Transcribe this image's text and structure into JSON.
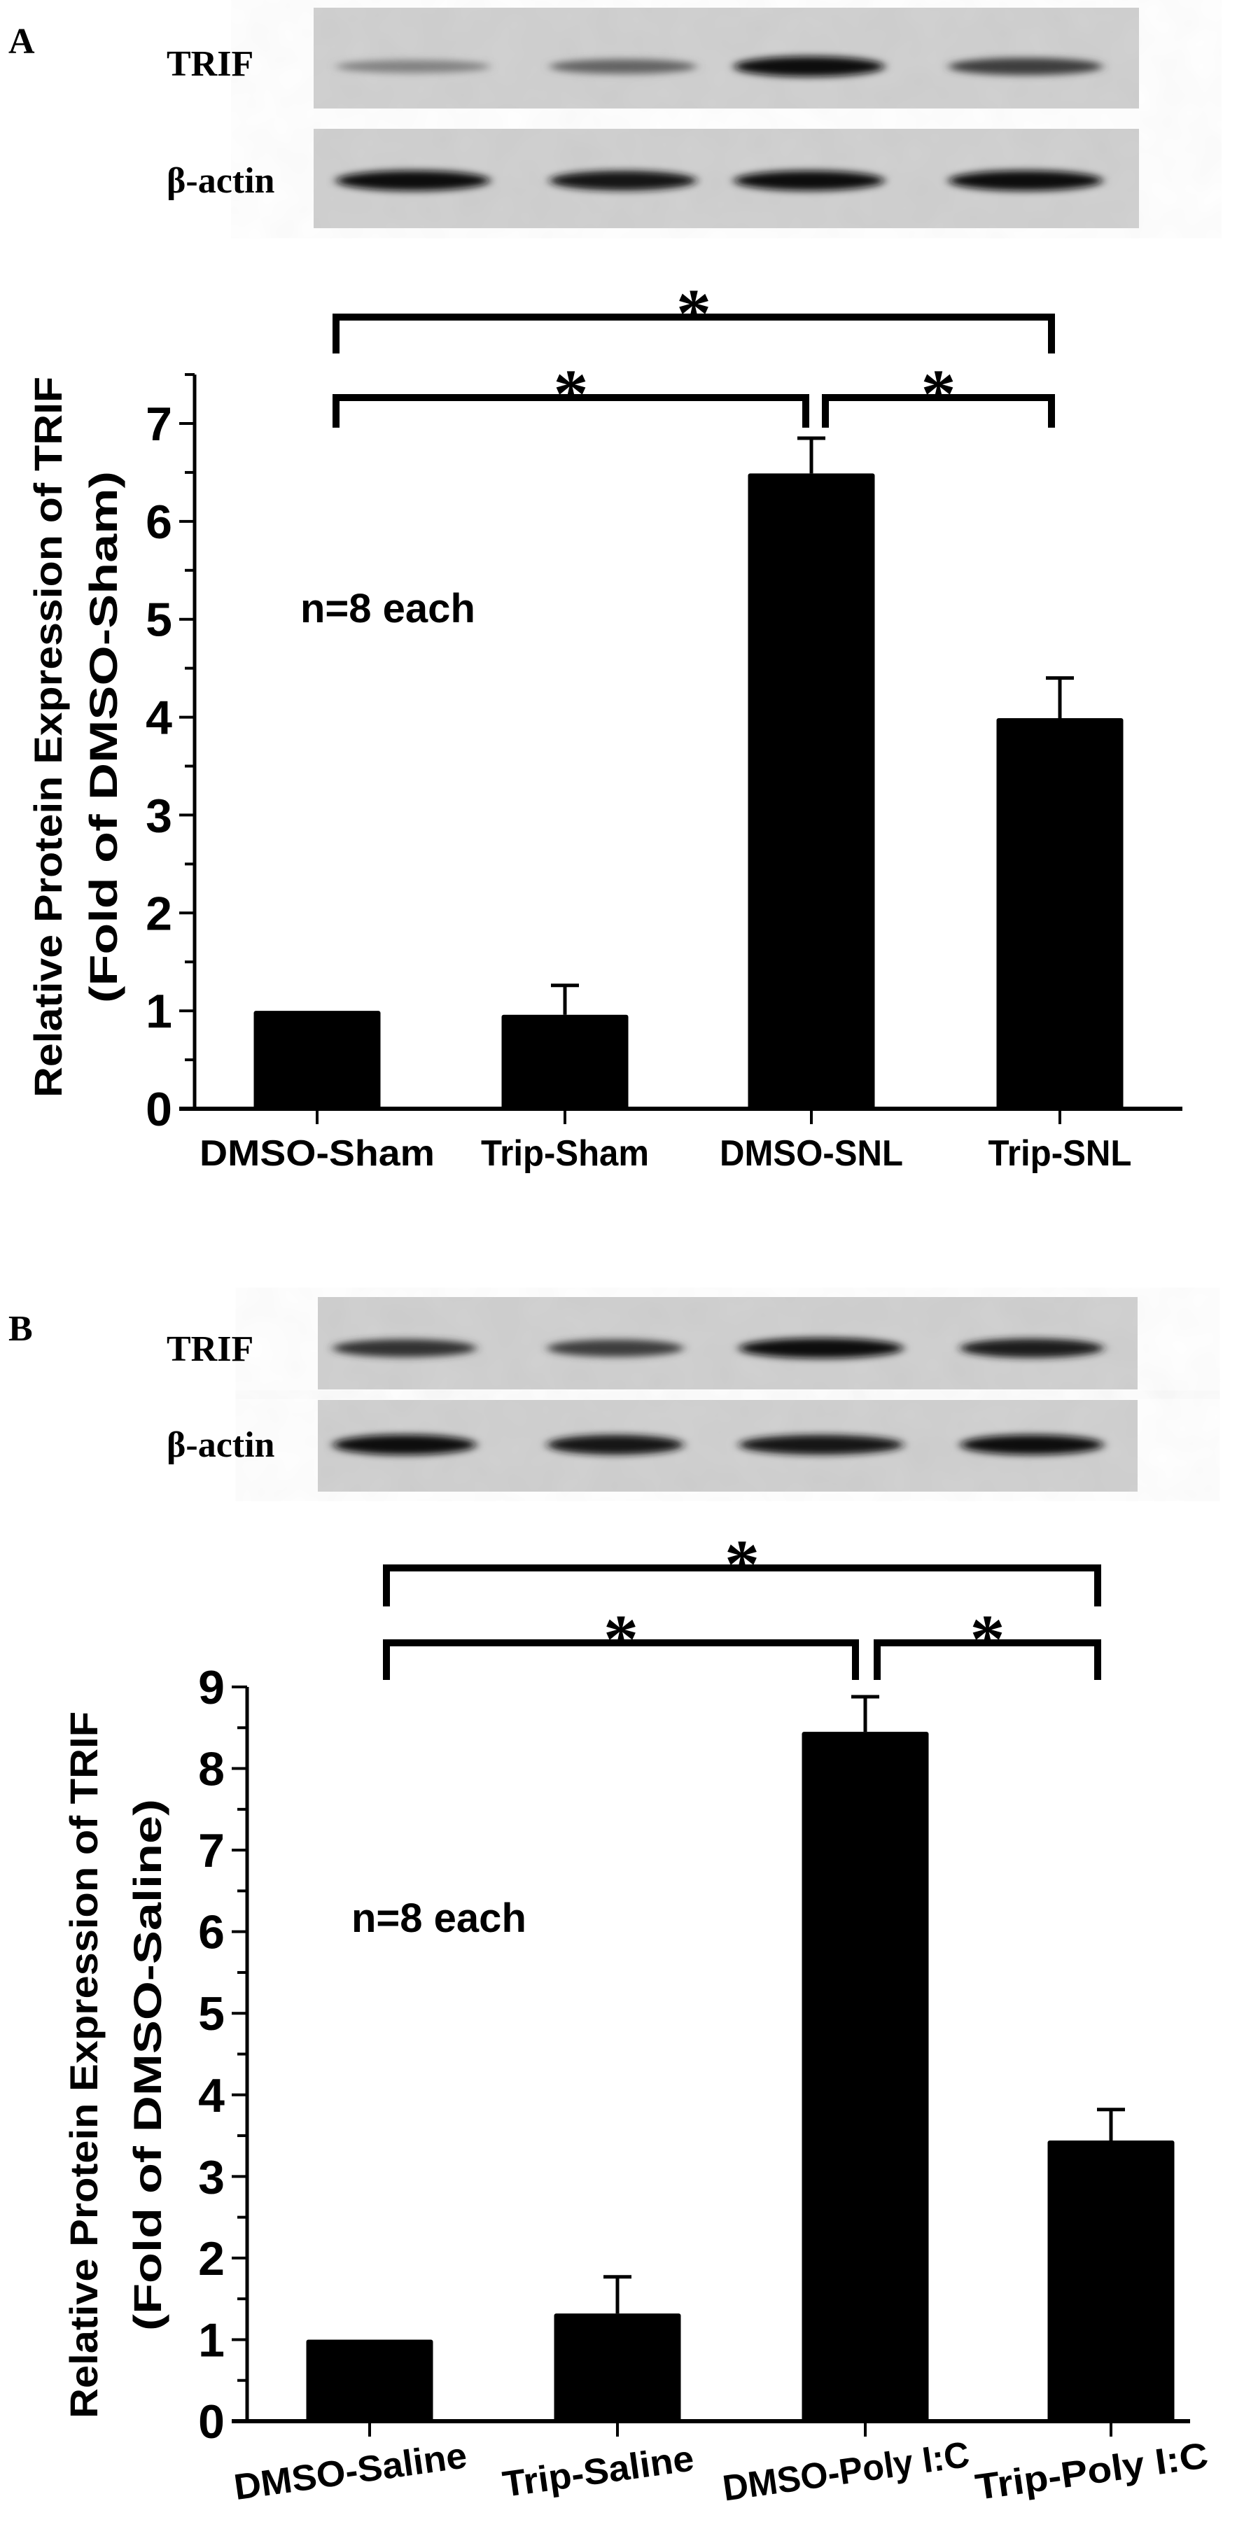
{
  "panels": [
    {
      "label": "A",
      "blot": {
        "rows": [
          {
            "name": "TRIF",
            "intensities": [
              0.35,
              0.5,
              0.95,
              0.7
            ]
          },
          {
            "name": "β-actin",
            "intensities": [
              0.95,
              0.9,
              0.92,
              0.95
            ]
          }
        ]
      },
      "annotation": "n=8 each"
    },
    {
      "label": "B",
      "blot": {
        "rows": [
          {
            "name": "TRIF",
            "intensities": [
              0.75,
              0.7,
              0.95,
              0.85
            ]
          },
          {
            "name": "β-actin",
            "intensities": [
              0.95,
              0.9,
              0.9,
              0.92
            ]
          }
        ]
      },
      "annotation": "n=8 each"
    }
  ],
  "chart_data": [
    {
      "type": "bar",
      "title": "",
      "xlabel": "",
      "ylabel": "Relative Protein Expression of TRIF",
      "ylabel2": "(Fold of DMSO-Sham)",
      "categories": [
        "DMSO-Sham",
        "Trip-Sham",
        "DMSO-SNL",
        "Trip-SNL"
      ],
      "values": [
        1.0,
        0.96,
        6.49,
        3.99
      ],
      "error_upper": [
        1.0,
        1.26,
        6.85,
        4.4
      ],
      "ylim": [
        0,
        7.5
      ],
      "yticks": [
        0,
        1,
        2,
        3,
        4,
        5,
        6,
        7
      ],
      "grid": false,
      "bar_color": "#000000",
      "significance": [
        {
          "from": 0,
          "to": 3,
          "label": "*"
        },
        {
          "from": 0,
          "to": 2,
          "label": "*"
        },
        {
          "from": 2,
          "to": 3,
          "label": "*"
        }
      ]
    },
    {
      "type": "bar",
      "title": "",
      "xlabel": "",
      "ylabel": "Relative Protein Expression of TRIF",
      "ylabel2": "(Fold of DMSO-Saline)",
      "categories": [
        "DMSO-Saline",
        "Trip-Saline",
        "DMSO-Poly I:C",
        "Trip-Poly I:C"
      ],
      "values": [
        1.0,
        1.32,
        8.45,
        3.44
      ],
      "error_upper": [
        1.0,
        1.77,
        8.88,
        3.82
      ],
      "ylim": [
        0,
        9
      ],
      "yticks": [
        0,
        1,
        2,
        3,
        4,
        5,
        6,
        7,
        8,
        9
      ],
      "grid": false,
      "bar_color": "#000000",
      "significance": [
        {
          "from": 0,
          "to": 3,
          "label": "*"
        },
        {
          "from": 0,
          "to": 2,
          "label": "*"
        },
        {
          "from": 2,
          "to": 3,
          "label": "*"
        }
      ]
    }
  ]
}
